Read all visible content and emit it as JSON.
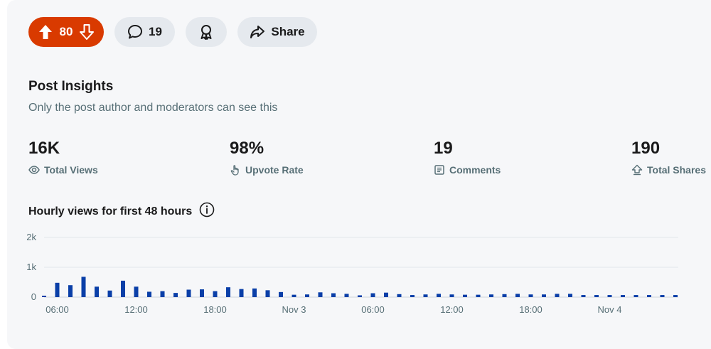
{
  "actions": {
    "score": "80",
    "comment_count": "19",
    "share_label": "Share"
  },
  "insights": {
    "title": "Post Insights",
    "subtitle": "Only the post author and moderators can see this",
    "stats": {
      "views": {
        "value": "16K",
        "label": "Total Views",
        "icon": "eye-icon"
      },
      "upvote_rate": {
        "value": "98%",
        "label": "Upvote Rate",
        "icon": "hand-pointer-icon"
      },
      "comments": {
        "value": "19",
        "label": "Comments",
        "icon": "comments-icon"
      },
      "shares": {
        "value": "190",
        "label": "Total Shares",
        "icon": "share-upload-icon"
      }
    }
  },
  "colors": {
    "upvote_bg": "#d93a00",
    "button_bg": "#e5e9ee",
    "bar": "#0a3fa8",
    "muted_text": "#576f76"
  },
  "chart_data": {
    "type": "bar",
    "title": "Hourly views for first 48 hours",
    "ylim": [
      0,
      2000
    ],
    "yticks": [
      "0",
      "1k",
      "2k"
    ],
    "x_tick_labels": [
      "06:00",
      "12:00",
      "18:00",
      "Nov 3",
      "06:00",
      "12:00",
      "18:00",
      "Nov 4"
    ],
    "x_tick_index": [
      1,
      7,
      13,
      19,
      25,
      31,
      37,
      43
    ],
    "grid": true,
    "values": [
      20,
      480,
      400,
      680,
      350,
      220,
      550,
      350,
      180,
      200,
      140,
      250,
      260,
      200,
      330,
      270,
      290,
      230,
      170,
      80,
      90,
      160,
      130,
      110,
      60,
      130,
      150,
      100,
      70,
      90,
      110,
      90,
      80,
      80,
      90,
      100,
      110,
      90,
      90,
      110,
      110,
      70,
      70,
      70,
      70,
      70,
      70,
      70,
      70
    ]
  }
}
